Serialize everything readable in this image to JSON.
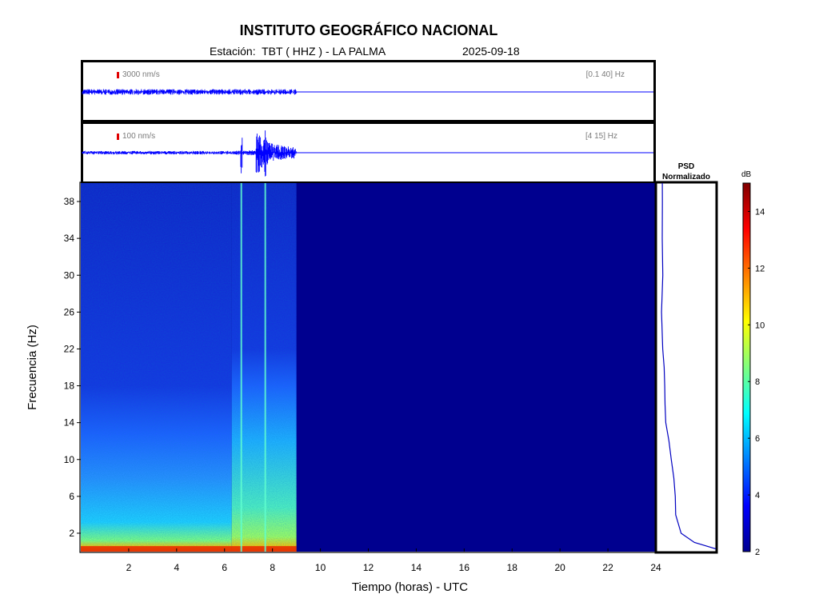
{
  "header": {
    "title": "INSTITUTO GEOGRÁFICO NACIONAL",
    "station": "Estación:  TBT ( HHZ ) - LA PALMA",
    "date": "2025-09-18"
  },
  "trace_broadband": {
    "amplitude_scale": "3000 nm/s",
    "filter_band": "[0.1 40] Hz",
    "scale_marker_color": "#e00000",
    "trace_color": "#0000ff"
  },
  "trace_highband": {
    "amplitude_scale": "100 nm/s",
    "filter_band": "[4 15] Hz",
    "scale_marker_color": "#e00000",
    "trace_color": "#0000ff"
  },
  "psd_panel": {
    "title_line1": "PSD",
    "title_line2": "Normalizado"
  },
  "colorbar": {
    "unit": "dB",
    "ticks": [
      "2",
      "4",
      "6",
      "8",
      "10",
      "12",
      "14"
    ],
    "colormap": "jet",
    "range": [
      2,
      15
    ]
  },
  "chart_data": {
    "type": "heatmap",
    "title": "INSTITUTO GEOGRÁFICO NACIONAL",
    "xlabel": "Tiempo (horas) - UTC",
    "ylabel": "Frecuencia  (Hz)",
    "xlim": [
      0,
      24
    ],
    "ylim": [
      0,
      40
    ],
    "x_ticks": [
      2,
      4,
      6,
      8,
      10,
      12,
      14,
      16,
      18,
      20,
      22,
      24
    ],
    "y_ticks": [
      2,
      6,
      10,
      14,
      18,
      22,
      26,
      30,
      34,
      38
    ],
    "data_end_hour": 9,
    "events_hours": [
      6.7,
      7.7
    ],
    "empty_color": "#00008f",
    "psd_curve": [
      {
        "f": 0.3,
        "v": 1.0
      },
      {
        "f": 1.0,
        "v": 0.62
      },
      {
        "f": 2.0,
        "v": 0.38
      },
      {
        "f": 4.0,
        "v": 0.25
      },
      {
        "f": 6.0,
        "v": 0.24
      },
      {
        "f": 8.0,
        "v": 0.2
      },
      {
        "f": 10.0,
        "v": 0.16
      },
      {
        "f": 12.0,
        "v": 0.12
      },
      {
        "f": 14.0,
        "v": 0.08
      },
      {
        "f": 16.0,
        "v": 0.05
      },
      {
        "f": 18.0,
        "v": 0.03
      },
      {
        "f": 20.0,
        "v": 0.015
      },
      {
        "f": 22.0,
        "v": 0.01
      },
      {
        "f": 26.0,
        "v": 0.008
      },
      {
        "f": 30.0,
        "v": 0.006
      },
      {
        "f": 34.0,
        "v": 0.004
      },
      {
        "f": 38.0,
        "v": 0.003
      },
      {
        "f": 40.0,
        "v": 0.002
      }
    ]
  }
}
